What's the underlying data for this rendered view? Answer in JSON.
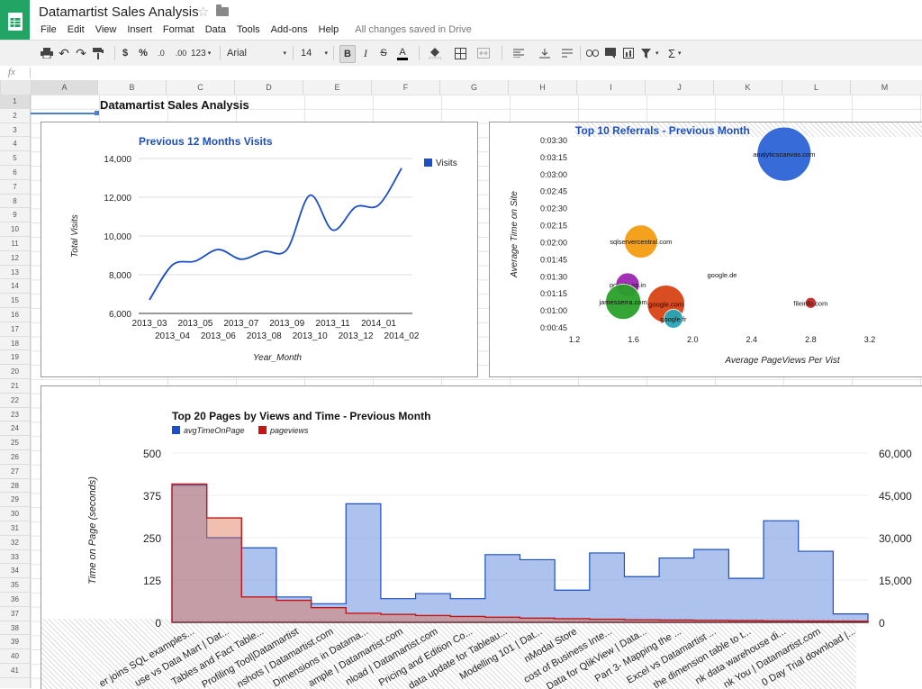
{
  "app": {
    "title": "Datamartist Sales Analysis",
    "save_status": "All changes saved in Drive"
  },
  "menus": [
    "File",
    "Edit",
    "View",
    "Insert",
    "Format",
    "Data",
    "Tools",
    "Add-ons",
    "Help"
  ],
  "toolbar": {
    "currency": "$",
    "percent": "%",
    "dec_less": ".0",
    "dec_more": ".00",
    "more_formats": "123",
    "font": "Arial",
    "font_size": "14",
    "bold": "B",
    "italic": "I",
    "strike": "S",
    "text_color": "A",
    "sum": "Σ"
  },
  "formula_bar": {
    "fx_label": "fx",
    "value": ""
  },
  "columns": [
    "A",
    "B",
    "C",
    "D",
    "E",
    "F",
    "G",
    "H",
    "I",
    "J",
    "K",
    "L",
    "M"
  ],
  "rows": [
    "1",
    "2",
    "3",
    "4",
    "5",
    "6",
    "7",
    "8",
    "9",
    "10",
    "11",
    "12",
    "13",
    "14",
    "15",
    "16",
    "17",
    "18",
    "19",
    "20",
    "21",
    "22",
    "23",
    "24",
    "25",
    "26",
    "27",
    "28",
    "29",
    "30",
    "31",
    "32",
    "33",
    "34",
    "35",
    "36",
    "37",
    "38",
    "39",
    "40",
    "41"
  ],
  "sheet": {
    "title": "Datamartist Sales Analysis"
  },
  "colors": {
    "blue": "#1c4fc4",
    "red": "#c41616",
    "green": "#21a464"
  },
  "chart_data": [
    {
      "type": "line",
      "title": "Previous 12 Months Visits",
      "xlabel": "Year_Month",
      "ylabel": "Total Visits",
      "x": [
        "2013_03",
        "2013_04",
        "2013_05",
        "2013_06",
        "2013_07",
        "2013_08",
        "2013_09",
        "2013_10",
        "2013_11",
        "2013_12",
        "2014_01",
        "2014_02"
      ],
      "series": [
        {
          "name": "Visits",
          "values": [
            6700,
            8500,
            8700,
            9300,
            8800,
            9200,
            9300,
            12100,
            10300,
            11500,
            11600,
            13500
          ]
        }
      ],
      "yticks": [
        "6,000",
        "8,000",
        "10,000",
        "12,000",
        "14,000"
      ],
      "ylim": [
        6000,
        14000
      ],
      "legend": "right"
    },
    {
      "type": "scatter",
      "title": "Top 10 Referrals - Previous Month",
      "xlabel": "Average PageViews Per Vist",
      "ylabel": "Average Time on Site",
      "xticks": [
        "1.2",
        "1.6",
        "2.0",
        "2.4",
        "2.8",
        "3.2"
      ],
      "xlim": [
        1.2,
        3.2
      ],
      "yticks": [
        "0:00:45",
        "0:01:00",
        "0:01:15",
        "0:01:30",
        "0:01:45",
        "0:02:00",
        "0:02:15",
        "0:02:30",
        "0:02:45",
        "0:03:00",
        "0:03:15",
        "0:03:30"
      ],
      "ylim_seconds": [
        45,
        210
      ],
      "points": [
        {
          "label": "analyticscanvas.com",
          "x": 2.62,
          "y": 198,
          "size": 1.0,
          "color": "#2b63d6"
        },
        {
          "label": "sqlservercentral.com",
          "x": 1.65,
          "y": 121,
          "size": 0.55,
          "color": "#f39c12"
        },
        {
          "label": "google.de",
          "x": 2.2,
          "y": 92,
          "size": 0.0,
          "color": "#888888"
        },
        {
          "label": "google.co.in",
          "x": 1.56,
          "y": 83,
          "size": 0.35,
          "color": "#9c27b0"
        },
        {
          "label": "jamesserra.com",
          "x": 1.53,
          "y": 68,
          "size": 0.6,
          "color": "#2aa02a"
        },
        {
          "label": "google.com",
          "x": 1.82,
          "y": 66,
          "size": 0.65,
          "color": "#d84315"
        },
        {
          "label": "google.fr",
          "x": 1.87,
          "y": 53,
          "size": 0.25,
          "color": "#26a6b8"
        },
        {
          "label": "fileinfo.com",
          "x": 2.8,
          "y": 67,
          "size": 0.08,
          "color": "#c62828"
        }
      ]
    },
    {
      "type": "area",
      "title": "Top 20 Pages by Views and Time - Previous Month",
      "ylabel": "Time on Page (seconds)",
      "ylim": [
        0,
        500
      ],
      "yticks": [
        "0",
        "125",
        "250",
        "375",
        "500"
      ],
      "y2ticks": [
        "0",
        "15,000",
        "30,000",
        "45,000",
        "60,000"
      ],
      "y2lim": [
        0,
        60000
      ],
      "categories": [
        "er joins SQL examples...",
        "use vs Data Mart | Dat...",
        "Tables and Fact Table...",
        "Profiling Tool|Datamartist",
        "nshots | Datamartist.com",
        "Dimensions in Datama...",
        "ample | Datamartist.com",
        "nload | Datamartist.com",
        "Pricing and Edition Co...",
        "data update for Tableau...",
        "Modelling 101 | Dat...",
        "nModal Store",
        "cost of Business Inte...",
        "Data for QlikView | Data...",
        "Part 3- Mapping the ...",
        "Excel vs Datamartist ...",
        "the dimension table to t...",
        "nk data warehouse di...",
        "nk You | Datamartist.com",
        "0 Day Trial download |..."
      ],
      "series": [
        {
          "name": "avgTimeOnPage",
          "values": [
            405,
            250,
            220,
            75,
            55,
            350,
            70,
            85,
            70,
            200,
            185,
            95,
            205,
            135,
            190,
            215,
            130,
            300,
            210,
            25
          ]
        },
        {
          "name": "pageviews",
          "values": [
            49000,
            37000,
            9000,
            7800,
            5200,
            3200,
            2800,
            2400,
            2100,
            1800,
            1500,
            1300,
            1100,
            900,
            800,
            700,
            600,
            500,
            450,
            400
          ]
        }
      ],
      "legend": "top"
    }
  ]
}
